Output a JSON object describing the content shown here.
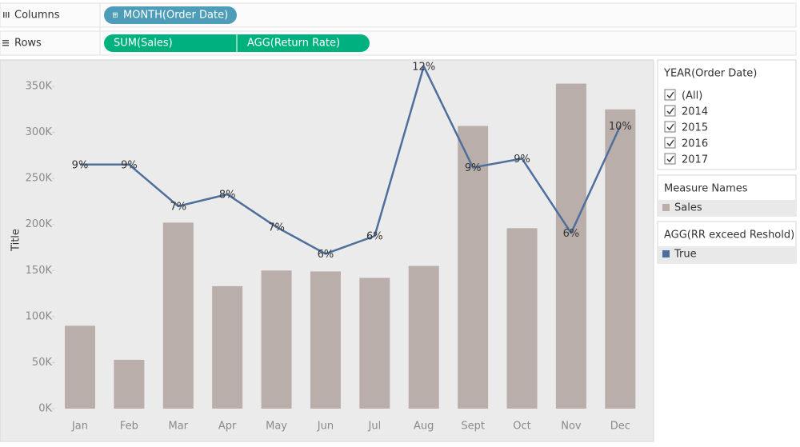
{
  "shelves": {
    "columns": {
      "label": "Columns",
      "pills": [
        "MONTH(Order Date)"
      ]
    },
    "rows": {
      "label": "Rows",
      "pills": [
        "SUM(Sales)",
        "AGG(Return Rate)"
      ]
    }
  },
  "filter": {
    "title": "YEAR(Order Date)",
    "items": [
      "(All)",
      "2014",
      "2015",
      "2016",
      "2017"
    ]
  },
  "legends": [
    {
      "title": "Measure Names",
      "items": [
        {
          "name": "Sales",
          "color": "#b9aea9"
        }
      ]
    },
    {
      "title": "AGG(RR exceed Reshold)",
      "items": [
        {
          "name": "True",
          "color": "#4e6f9c"
        }
      ]
    }
  ],
  "chart_data": {
    "type": "bar-line",
    "y_label": "Title",
    "categories": [
      "Jan",
      "Feb",
      "Mar",
      "Apr",
      "May",
      "Jun",
      "Jul",
      "Aug",
      "Sept",
      "Oct",
      "Nov",
      "Dec"
    ],
    "series": [
      {
        "type": "bar",
        "color": "#b9aea9",
        "values": [
          90,
          53,
          202,
          133,
          150,
          149,
          142,
          155,
          307,
          196,
          353,
          325
        ]
      },
      {
        "type": "line",
        "axis": "y2",
        "color": "#4e6f9c",
        "values": [
          8.7,
          8.7,
          7.3,
          7.7,
          6.6,
          5.7,
          6.3,
          12.0,
          8.6,
          8.9,
          6.4,
          10.0
        ],
        "value_labels": [
          "9%",
          "9%",
          "7%",
          "8%",
          "7%",
          "6%",
          "6%",
          "12%",
          "9%",
          "9%",
          "6%",
          "10%"
        ]
      }
    ],
    "ylim": [
      0,
      375
    ],
    "yticks": [
      {
        "value": 0,
        "label": "0K"
      },
      {
        "value": 50,
        "label": "50K"
      },
      {
        "value": 100,
        "label": "100K"
      },
      {
        "value": 150,
        "label": "150K"
      },
      {
        "value": 200,
        "label": "200K"
      },
      {
        "value": 250,
        "label": "250K"
      },
      {
        "value": 300,
        "label": "300K"
      },
      {
        "value": 350,
        "label": "350K"
      }
    ],
    "y2lim": [
      0.5,
      12.1
    ]
  }
}
